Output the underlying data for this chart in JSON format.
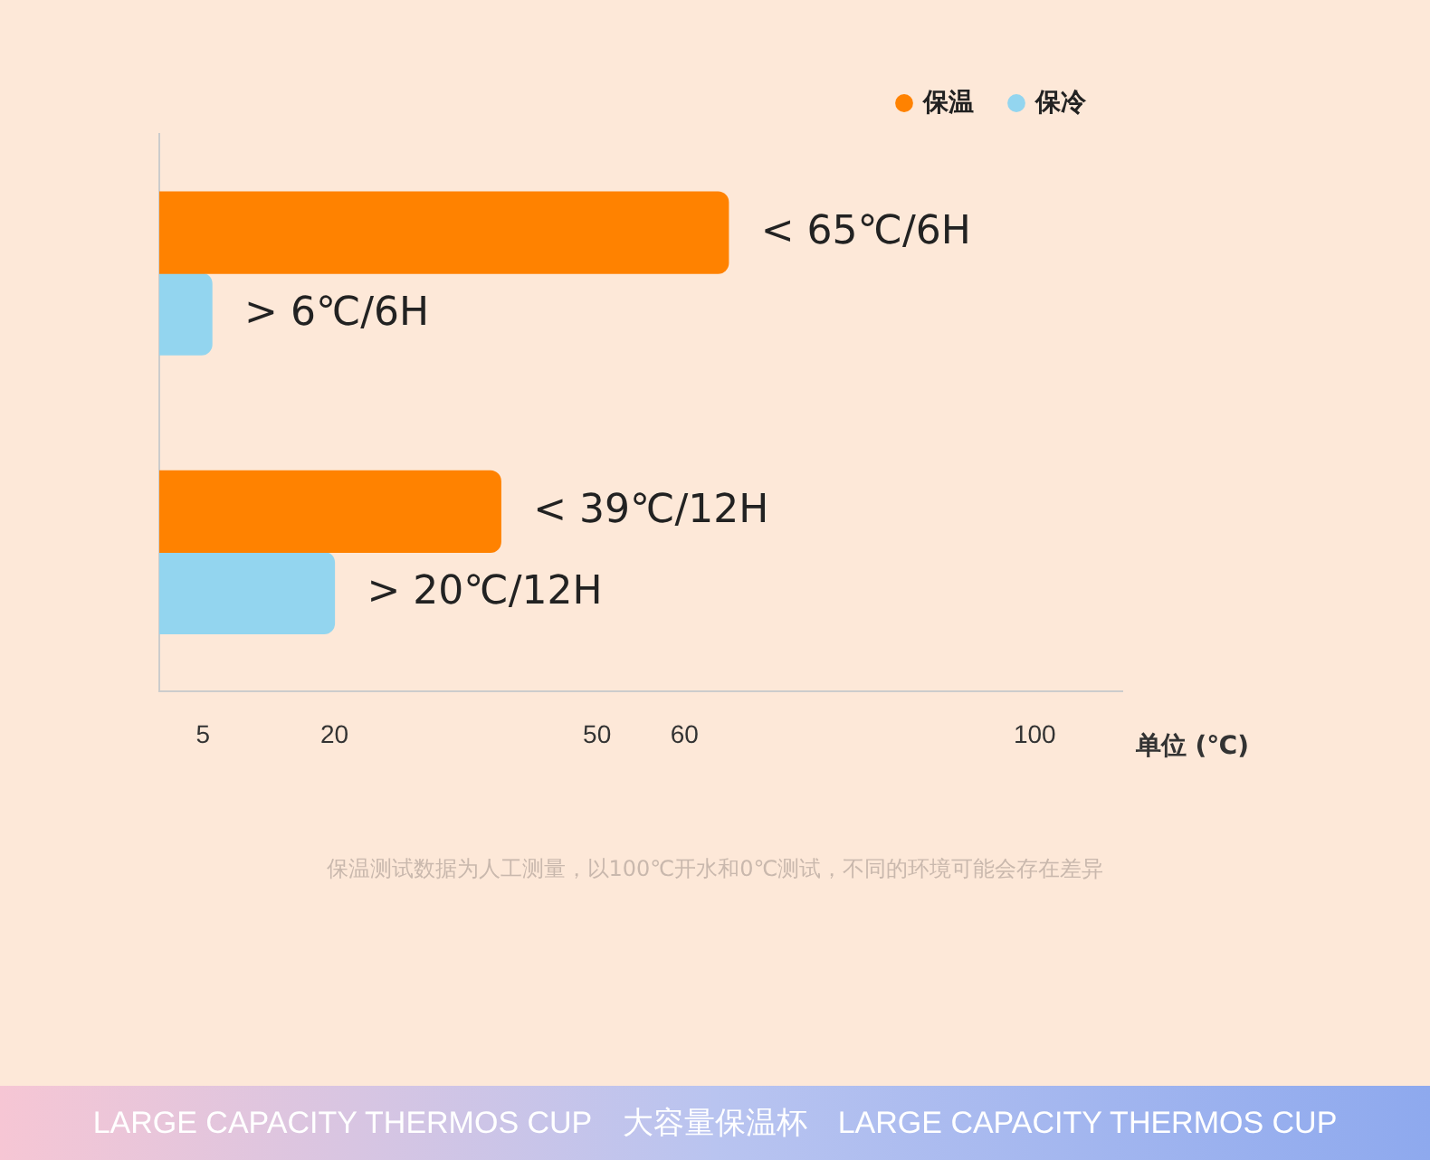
{
  "chart_data": {
    "type": "bar",
    "orientation": "horizontal",
    "categories": [
      null,
      null
    ],
    "series": [
      {
        "name": "保温",
        "color": "#ff8200",
        "values": [
          65,
          39
        ],
        "value_labels": [
          "< 65℃/6H",
          "< 39℃/12H"
        ]
      },
      {
        "name": "保冷",
        "color": "#93d5ef",
        "values": [
          6,
          20
        ],
        "value_labels": [
          "> 6℃/6H",
          "> 20℃/12H"
        ]
      }
    ],
    "xlim": [
      0,
      110
    ],
    "xticks": [
      5,
      20,
      50,
      60,
      100
    ],
    "xlabel": "单位 (℃)",
    "legend": "top right",
    "grid": false,
    "annotations": [
      "保温测试数据为人工测量，以100℃开水和0℃测试，不同的环境可能会存在差异",
      "LARGE CAPACITY THERMOS CUP　大容量保温杯　LARGE CAPACITY THERMOS CUP"
    ]
  }
}
